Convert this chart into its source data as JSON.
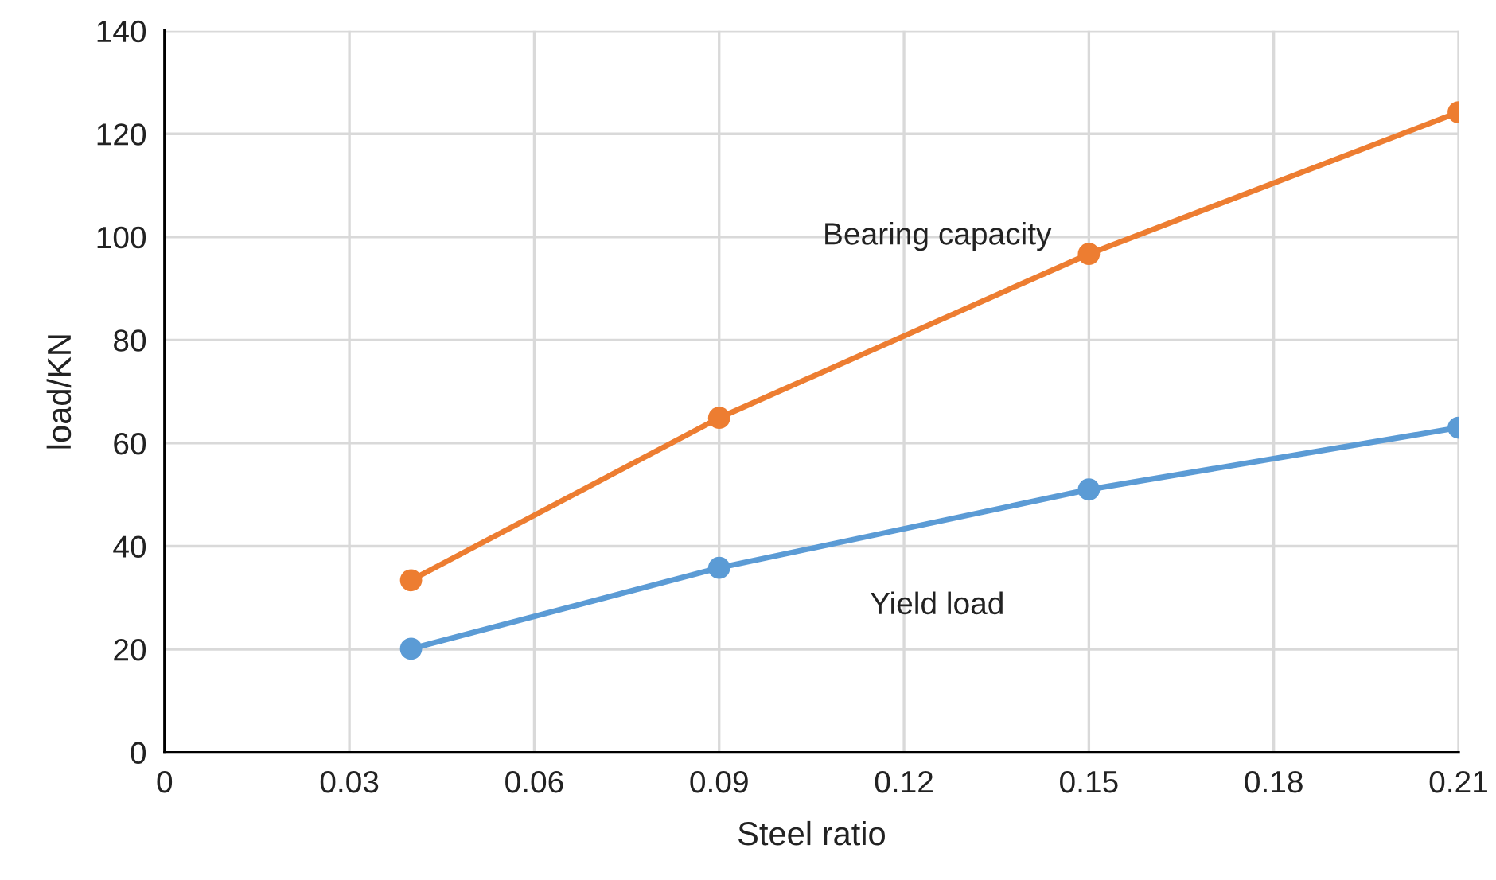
{
  "chart_data": {
    "type": "line",
    "xlabel": "Steel ratio",
    "ylabel": "load/KN",
    "x": [
      0.04,
      0.09,
      0.15,
      0.21
    ],
    "series": [
      {
        "name": "Bearing capacity",
        "color": "#ed7d31",
        "values": [
          33.4,
          64.9,
          96.7,
          124.2
        ]
      },
      {
        "name": "Yield load",
        "color": "#5b9bd5",
        "values": [
          20.1,
          35.8,
          51.0,
          63.0
        ]
      }
    ],
    "xlim": [
      0,
      0.21
    ],
    "xticks": [
      0,
      0.03,
      0.06,
      0.09,
      0.12,
      0.15,
      0.18,
      0.21
    ],
    "ylim": [
      0,
      140
    ],
    "yticks": [
      0,
      20,
      40,
      60,
      80,
      100,
      120,
      140
    ],
    "grid": true,
    "marker": "circle",
    "line_style": "solid",
    "legend": false
  }
}
